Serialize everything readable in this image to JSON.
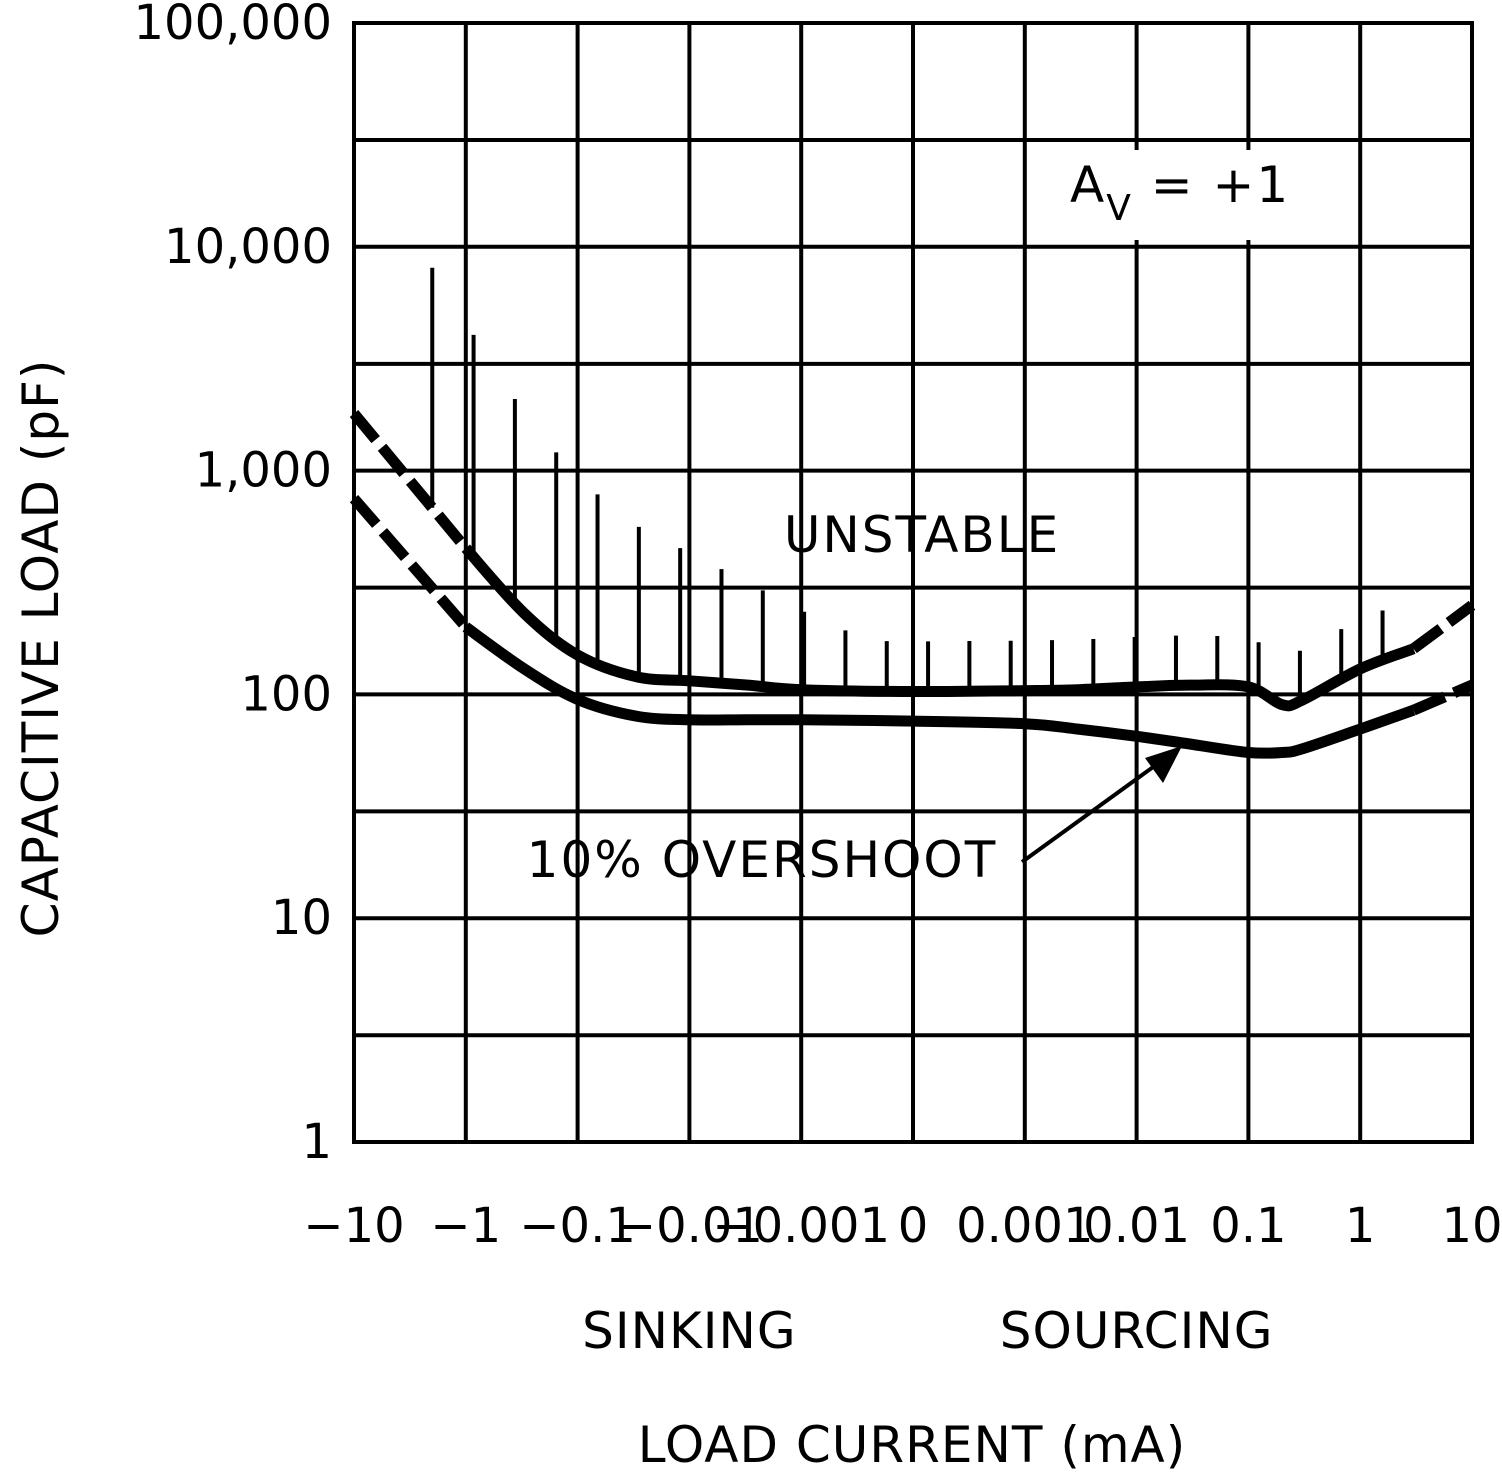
{
  "chart_data": {
    "type": "line",
    "title": "",
    "xlabel": "LOAD CURRENT (mA)",
    "ylabel": "CAPACITIVE LOAD (pF)",
    "x_scale": "symmetric-log",
    "y_scale": "log",
    "x_ticks": [
      "-10",
      "-1",
      "-0.1",
      "-0.01",
      "-0.001",
      "0",
      "0.001",
      "0.01",
      "0.1",
      "1",
      "10"
    ],
    "y_ticks": [
      "1",
      "10",
      "100",
      "1,000",
      "10,000",
      "100,000"
    ],
    "ylim": [
      1,
      100000
    ],
    "x_region_labels": [
      {
        "text": "SINKING",
        "at": -0.01
      },
      {
        "text": "SOURCING",
        "at": 0.01
      }
    ],
    "annotations": {
      "gain": {
        "base": "A",
        "sub": "V",
        "rest": " = +1"
      },
      "unstable": "UNSTABLE",
      "overshoot": "10% OVERSHOOT"
    },
    "series": [
      {
        "role": "stability-boundary",
        "x": [
          "-10",
          "-1",
          "-0.3",
          "-0.1",
          "-0.03",
          "-0.01",
          "-0.003",
          "-0.001",
          "0",
          "0.001",
          "0.003",
          "0.01",
          "0.03",
          "0.1",
          "0.2",
          "0.3",
          "1",
          "3",
          "10"
        ],
        "y": [
          1800,
          450,
          230,
          150,
          120,
          115,
          110,
          105,
          103,
          104,
          105,
          108,
          110,
          108,
          90,
          94,
          130,
          160,
          250
        ],
        "dashed_segments": [
          [
            "-10",
            "-1"
          ],
          [
            "3",
            "10"
          ]
        ]
      },
      {
        "role": "10%-overshoot",
        "x": [
          "-10",
          "-1",
          "-0.3",
          "-0.1",
          "-0.03",
          "-0.01",
          "-0.003",
          "-0.001",
          "0",
          "0.001",
          "0.003",
          "0.01",
          "0.03",
          "0.1",
          "0.2",
          "0.3",
          "1",
          "3",
          "10"
        ],
        "y": [
          750,
          200,
          130,
          95,
          80,
          77,
          77,
          77,
          76,
          74,
          70,
          65,
          60,
          55,
          55,
          57,
          70,
          85,
          110
        ],
        "dashed_segments": [
          [
            "-10",
            "-1"
          ],
          [
            "3",
            "10"
          ]
        ]
      }
    ]
  }
}
